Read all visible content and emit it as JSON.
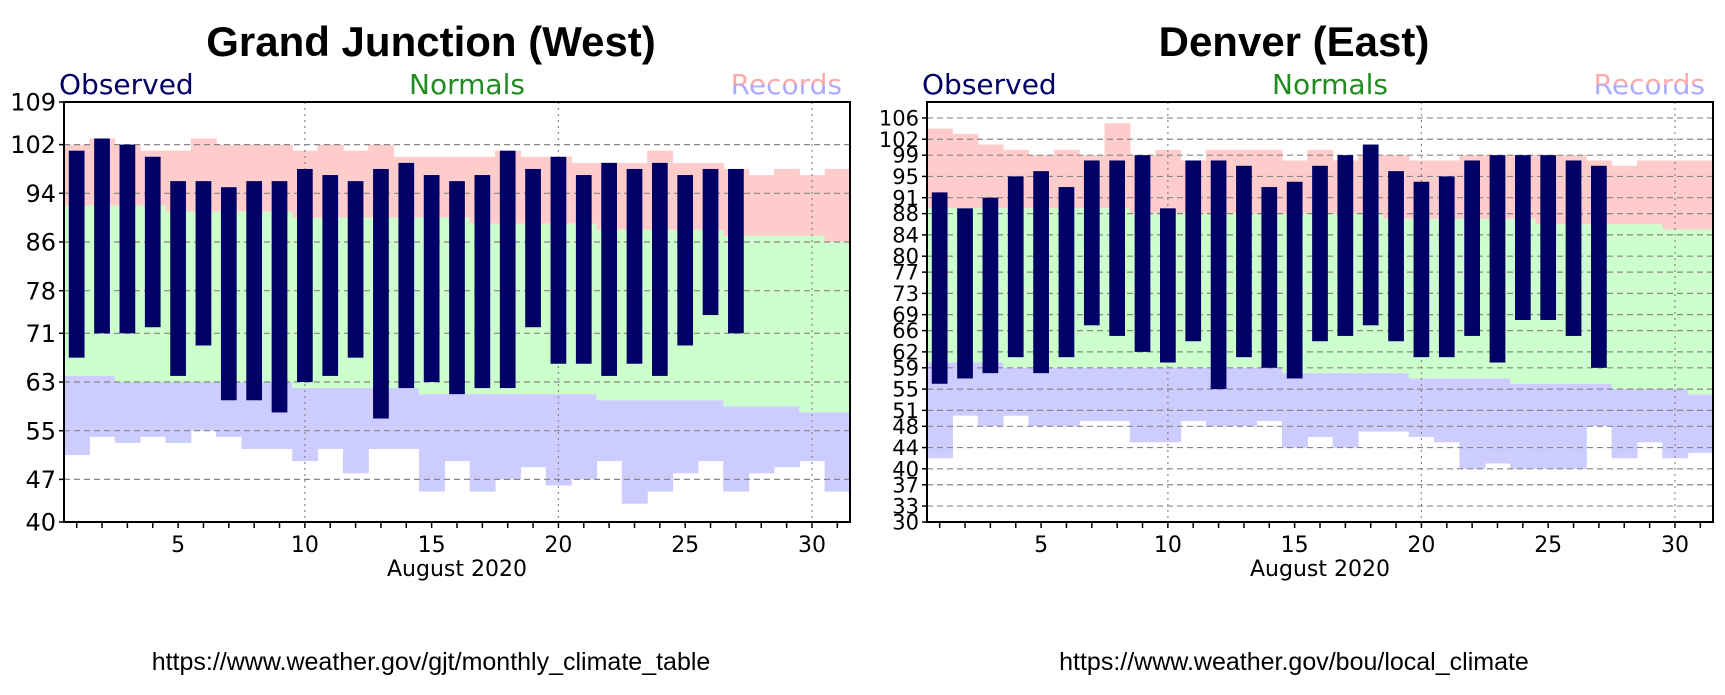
{
  "chart_data": [
    {
      "type": "bar",
      "title": "Grand Junction (West)",
      "source_url": "https://www.weather.gov/gjt/monthly_climate_table",
      "xlabel": "August 2020",
      "legend": {
        "observed": "Observed",
        "normals": "Normals",
        "records": "Records"
      },
      "colors": {
        "observed": "#000066",
        "normals": "#ccffcc",
        "record_high": "#ffcccc",
        "record_low": "#ccccff",
        "grid": "#888888"
      },
      "ylim": [
        40,
        109
      ],
      "yticks": [
        40,
        47,
        55,
        63,
        71,
        78,
        86,
        94,
        102,
        109
      ],
      "xlim": [
        0.5,
        31.5
      ],
      "xticks": [
        5,
        10,
        15,
        20,
        25,
        30
      ],
      "days": [
        1,
        2,
        3,
        4,
        5,
        6,
        7,
        8,
        9,
        10,
        11,
        12,
        13,
        14,
        15,
        16,
        17,
        18,
        19,
        20,
        21,
        22,
        23,
        24,
        25,
        26,
        27,
        28,
        29,
        30,
        31
      ],
      "record_high": [
        102,
        103,
        102,
        101,
        101,
        103,
        102,
        102,
        102,
        101,
        102,
        101,
        102,
        100,
        100,
        100,
        100,
        101,
        100,
        100,
        99,
        99,
        99,
        101,
        99,
        99,
        98,
        97,
        98,
        97,
        98
      ],
      "normal_high": [
        92,
        92,
        92,
        92,
        91,
        91,
        91,
        91,
        91,
        90,
        90,
        90,
        90,
        90,
        90,
        90,
        89,
        89,
        89,
        89,
        89,
        88,
        88,
        88,
        88,
        88,
        87,
        87,
        87,
        87,
        86
      ],
      "normal_low": [
        64,
        64,
        63,
        63,
        63,
        63,
        63,
        63,
        63,
        62,
        62,
        62,
        62,
        62,
        61,
        61,
        61,
        61,
        61,
        61,
        61,
        60,
        60,
        60,
        60,
        60,
        59,
        59,
        59,
        58,
        58
      ],
      "record_low": [
        51,
        54,
        53,
        54,
        53,
        55,
        54,
        52,
        52,
        50,
        52,
        48,
        52,
        52,
        45,
        50,
        45,
        47,
        49,
        46,
        47,
        50,
        43,
        45,
        48,
        50,
        45,
        48,
        49,
        50,
        45
      ],
      "observed": [
        {
          "day": 1,
          "high": 101,
          "low": 67
        },
        {
          "day": 2,
          "high": 103,
          "low": 71
        },
        {
          "day": 3,
          "high": 102,
          "low": 71
        },
        {
          "day": 4,
          "high": 100,
          "low": 72
        },
        {
          "day": 5,
          "high": 96,
          "low": 64
        },
        {
          "day": 6,
          "high": 96,
          "low": 69
        },
        {
          "day": 7,
          "high": 95,
          "low": 60
        },
        {
          "day": 8,
          "high": 96,
          "low": 60
        },
        {
          "day": 9,
          "high": 96,
          "low": 58
        },
        {
          "day": 10,
          "high": 98,
          "low": 63
        },
        {
          "day": 11,
          "high": 97,
          "low": 64
        },
        {
          "day": 12,
          "high": 96,
          "low": 67
        },
        {
          "day": 13,
          "high": 98,
          "low": 57
        },
        {
          "day": 14,
          "high": 99,
          "low": 62
        },
        {
          "day": 15,
          "high": 97,
          "low": 63
        },
        {
          "day": 16,
          "high": 96,
          "low": 61
        },
        {
          "day": 17,
          "high": 97,
          "low": 62
        },
        {
          "day": 18,
          "high": 101,
          "low": 62
        },
        {
          "day": 19,
          "high": 98,
          "low": 72
        },
        {
          "day": 20,
          "high": 100,
          "low": 66
        },
        {
          "day": 21,
          "high": 97,
          "low": 66
        },
        {
          "day": 22,
          "high": 99,
          "low": 64
        },
        {
          "day": 23,
          "high": 98,
          "low": 66
        },
        {
          "day": 24,
          "high": 99,
          "low": 64
        },
        {
          "day": 25,
          "high": 97,
          "low": 69
        },
        {
          "day": 26,
          "high": 98,
          "low": 74
        },
        {
          "day": 27,
          "high": 98,
          "low": 71
        }
      ]
    },
    {
      "type": "bar",
      "title": "Denver (East)",
      "source_url": "https://www.weather.gov/bou/local_climate",
      "xlabel": "August 2020",
      "legend": {
        "observed": "Observed",
        "normals": "Normals",
        "records": "Records"
      },
      "colors": {
        "observed": "#000066",
        "normals": "#ccffcc",
        "record_high": "#ffcccc",
        "record_low": "#ccccff",
        "grid": "#888888"
      },
      "ylim": [
        30,
        109
      ],
      "yticks": [
        30,
        33,
        37,
        40,
        44,
        48,
        51,
        55,
        59,
        62,
        66,
        69,
        73,
        77,
        80,
        84,
        88,
        91,
        95,
        99,
        102,
        106
      ],
      "xlim": [
        0.5,
        31.5
      ],
      "xticks": [
        5,
        10,
        15,
        20,
        25,
        30
      ],
      "days": [
        1,
        2,
        3,
        4,
        5,
        6,
        7,
        8,
        9,
        10,
        11,
        12,
        13,
        14,
        15,
        16,
        17,
        18,
        19,
        20,
        21,
        22,
        23,
        24,
        25,
        26,
        27,
        28,
        29,
        30,
        31
      ],
      "record_high": [
        104,
        103,
        101,
        100,
        99,
        100,
        99,
        105,
        99,
        100,
        98,
        100,
        100,
        100,
        98,
        100,
        98,
        99,
        99,
        98,
        98,
        99,
        99,
        99,
        99,
        99,
        98,
        97,
        98,
        98,
        98
      ],
      "normal_high": [
        89,
        89,
        89,
        89,
        89,
        89,
        89,
        89,
        88,
        88,
        88,
        88,
        88,
        88,
        88,
        88,
        88,
        88,
        87,
        87,
        87,
        87,
        87,
        87,
        86,
        86,
        86,
        86,
        86,
        85,
        85
      ],
      "normal_low": [
        60,
        60,
        60,
        59,
        59,
        59,
        59,
        59,
        59,
        59,
        59,
        59,
        59,
        59,
        58,
        58,
        58,
        58,
        58,
        57,
        57,
        57,
        57,
        56,
        56,
        56,
        56,
        55,
        55,
        55,
        54
      ],
      "record_low": [
        42,
        50,
        48,
        50,
        48,
        48,
        49,
        49,
        45,
        45,
        49,
        48,
        48,
        49,
        44,
        46,
        44,
        47,
        47,
        46,
        45,
        40,
        41,
        40,
        40,
        40,
        48,
        42,
        45,
        42,
        43
      ],
      "observed": [
        {
          "day": 1,
          "high": 92,
          "low": 56
        },
        {
          "day": 2,
          "high": 89,
          "low": 57
        },
        {
          "day": 3,
          "high": 91,
          "low": 58
        },
        {
          "day": 4,
          "high": 95,
          "low": 61
        },
        {
          "day": 5,
          "high": 96,
          "low": 58
        },
        {
          "day": 6,
          "high": 93,
          "low": 61
        },
        {
          "day": 7,
          "high": 98,
          "low": 67
        },
        {
          "day": 8,
          "high": 98,
          "low": 65
        },
        {
          "day": 9,
          "high": 99,
          "low": 62
        },
        {
          "day": 10,
          "high": 89,
          "low": 60
        },
        {
          "day": 11,
          "high": 98,
          "low": 64
        },
        {
          "day": 12,
          "high": 98,
          "low": 55
        },
        {
          "day": 13,
          "high": 97,
          "low": 61
        },
        {
          "day": 14,
          "high": 93,
          "low": 59
        },
        {
          "day": 15,
          "high": 94,
          "low": 57
        },
        {
          "day": 16,
          "high": 97,
          "low": 64
        },
        {
          "day": 17,
          "high": 99,
          "low": 65
        },
        {
          "day": 18,
          "high": 101,
          "low": 67
        },
        {
          "day": 19,
          "high": 96,
          "low": 64
        },
        {
          "day": 20,
          "high": 94,
          "low": 61
        },
        {
          "day": 21,
          "high": 95,
          "low": 61
        },
        {
          "day": 22,
          "high": 98,
          "low": 65
        },
        {
          "day": 23,
          "high": 99,
          "low": 60
        },
        {
          "day": 24,
          "high": 99,
          "low": 68
        },
        {
          "day": 25,
          "high": 99,
          "low": 68
        },
        {
          "day": 26,
          "high": 98,
          "low": 65
        },
        {
          "day": 27,
          "high": 97,
          "low": 59
        }
      ]
    }
  ]
}
